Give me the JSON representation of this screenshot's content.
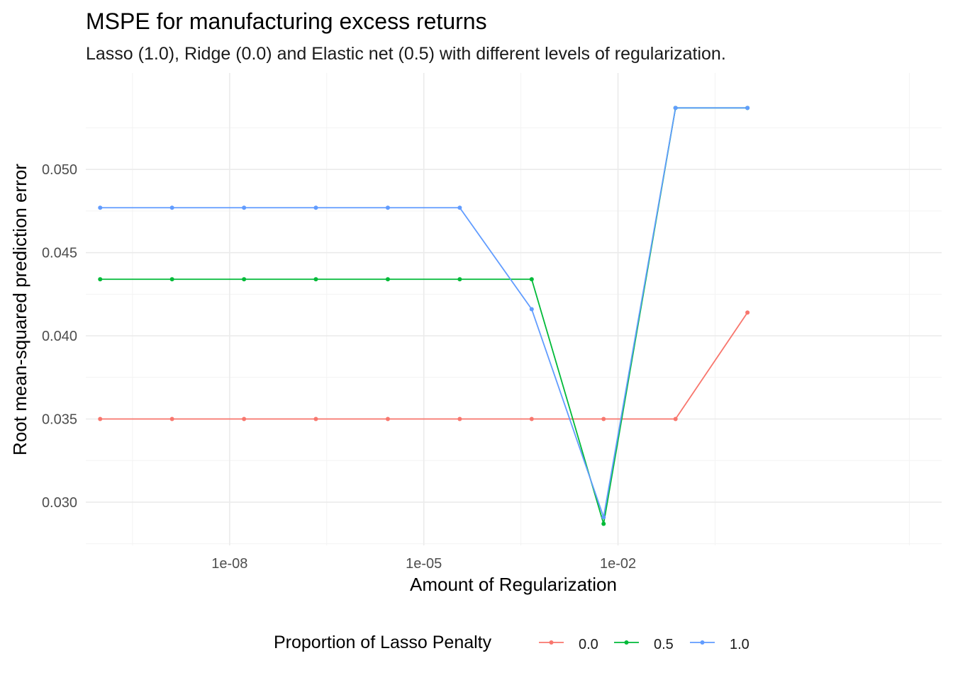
{
  "chart_data": {
    "type": "line",
    "title": "MSPE for manufacturing excess returns",
    "subtitle": "Lasso (1.0), Ridge (0.0) and Elastic net (0.5) with different levels of regularization.",
    "xlabel": "Amount of Regularization",
    "ylabel": "Root mean-squared prediction error",
    "x_scale": "log10",
    "x_ticks": [
      {
        "value": 1e-08,
        "label": "1e-08"
      },
      {
        "value": 1e-05,
        "label": "1e-05"
      },
      {
        "value": 0.01,
        "label": "1e-02"
      }
    ],
    "y_ticks": [
      {
        "value": 0.03,
        "label": "0.030"
      },
      {
        "value": 0.035,
        "label": "0.035"
      },
      {
        "value": 0.04,
        "label": "0.040"
      },
      {
        "value": 0.045,
        "label": "0.045"
      },
      {
        "value": 0.05,
        "label": "0.050"
      }
    ],
    "xlim": [
      6e-11,
      1000
    ],
    "ylim": [
      0.0274,
      0.0558
    ],
    "grid": true,
    "legend_position": "bottom",
    "legend_title": "Proportion of Lasso Penalty",
    "x": [
      1e-10,
      1.29e-09,
      1.67e-08,
      2.15e-07,
      2.78e-06,
      3.59e-05,
      0.000464,
      0.00599,
      0.0774,
      1.0
    ],
    "series": [
      {
        "name": "0.0",
        "color": "#F8766D",
        "values": [
          0.035,
          0.035,
          0.035,
          0.035,
          0.035,
          0.035,
          0.035,
          0.035,
          0.035,
          0.0414
        ]
      },
      {
        "name": "0.5",
        "color": "#00BA38",
        "values": [
          0.0434,
          0.0434,
          0.0434,
          0.0434,
          0.0434,
          0.0434,
          0.0434,
          0.0287,
          0.0537,
          0.0537
        ]
      },
      {
        "name": "1.0",
        "color": "#619CFF",
        "values": [
          0.0477,
          0.0477,
          0.0477,
          0.0477,
          0.0477,
          0.0477,
          0.0416,
          0.0291,
          0.0537,
          0.0537
        ]
      }
    ]
  }
}
